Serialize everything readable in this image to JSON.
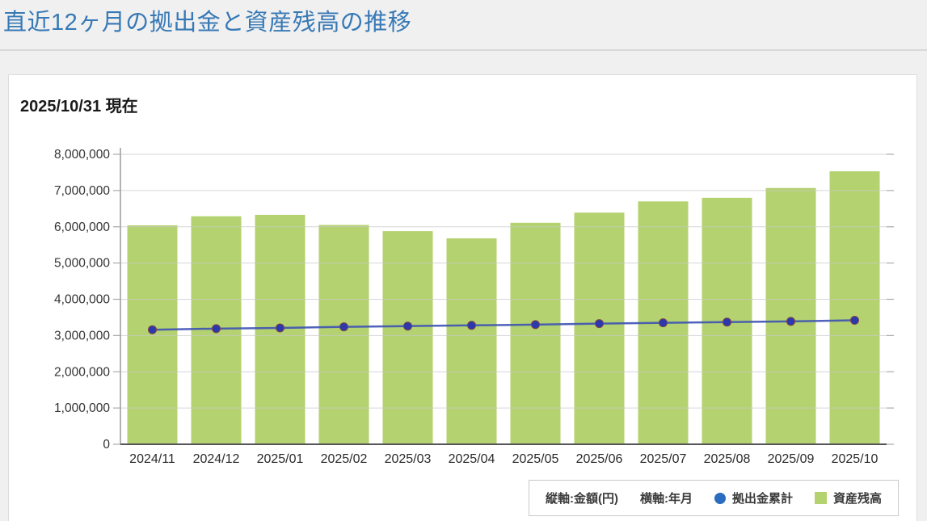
{
  "page": {
    "title": "直近12ヶ月の拠出金と資産残高の推移"
  },
  "card": {
    "as_of_label": "2025/10/31 現在"
  },
  "chart_data": {
    "type": "bar+line",
    "title": "直近12ヶ月の拠出金と資産残高の推移",
    "categories": [
      "2024/11",
      "2024/12",
      "2025/01",
      "2025/02",
      "2025/03",
      "2025/04",
      "2025/05",
      "2025/06",
      "2025/07",
      "2025/08",
      "2025/09",
      "2025/10"
    ],
    "series": [
      {
        "name": "資産残高",
        "type": "bar",
        "color": "#b4d26f",
        "values": [
          6040000,
          6290000,
          6330000,
          6050000,
          5880000,
          5680000,
          6110000,
          6390000,
          6700000,
          6800000,
          7070000,
          7530000
        ]
      },
      {
        "name": "拠出金累計",
        "type": "line",
        "color": "#2c39ae",
        "line_color": "#3d52b5",
        "marker_stroke": "#7c4444",
        "values": [
          3160000,
          3190000,
          3210000,
          3240000,
          3260000,
          3280000,
          3300000,
          3330000,
          3350000,
          3370000,
          3390000,
          3420000
        ]
      }
    ],
    "ylabel": "金額(円)",
    "xlabel": "年月",
    "ylim": [
      0,
      8000000
    ],
    "ytick_step": 1000000,
    "ytick_labels": [
      "0",
      "1,000,000",
      "2,000,000",
      "3,000,000",
      "4,000,000",
      "5,000,000",
      "6,000,000",
      "7,000,000",
      "8,000,000"
    ],
    "grid": true,
    "legend_position": "bottom-right"
  },
  "legend": {
    "vertical_axis_label": "縦軸:金額(円)",
    "horizontal_axis_label": "横軸:年月",
    "line_series_label": "拠出金累計",
    "bar_series_label": "資産残高"
  },
  "colors": {
    "title_blue": "#3779b6",
    "bar_green": "#b4d26f",
    "line_blue": "#3d52b5",
    "marker_blue": "#2c39ae",
    "legend_dot_blue": "#2a6cbf",
    "grid_gray": "#c8c8c8",
    "axis_gray": "#555555"
  }
}
